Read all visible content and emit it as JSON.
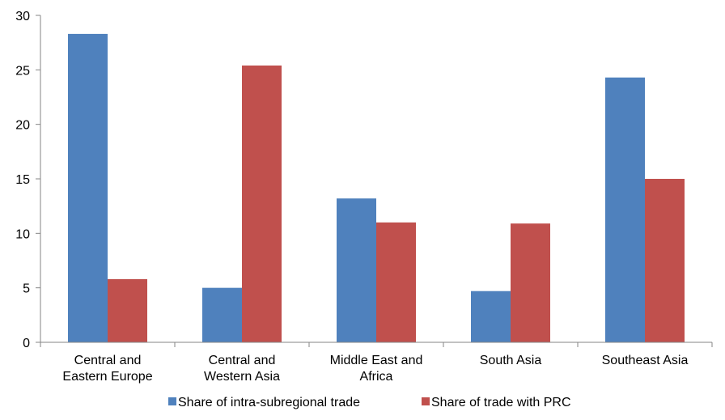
{
  "chart_data": {
    "type": "bar",
    "title": "",
    "xlabel": "",
    "ylabel": "",
    "categories": [
      [
        "Central and",
        "Eastern Europe"
      ],
      [
        "Central and",
        "Western Asia"
      ],
      [
        "Middle East and",
        "Africa"
      ],
      [
        "South Asia"
      ],
      [
        "Southeast Asia"
      ]
    ],
    "series": [
      {
        "name": "Share of intra-subregional trade",
        "color": "#4F81BD",
        "values": [
          28.3,
          5.0,
          13.2,
          4.7,
          24.3
        ]
      },
      {
        "name": "Share of trade with PRC",
        "color": "#C0504D",
        "values": [
          5.8,
          25.4,
          11.0,
          10.9,
          15.0
        ]
      }
    ],
    "ylim": [
      0,
      30
    ],
    "yticks": [
      0,
      5,
      10,
      15,
      20,
      25,
      30
    ],
    "grid": false,
    "legend_position": "bottom"
  }
}
